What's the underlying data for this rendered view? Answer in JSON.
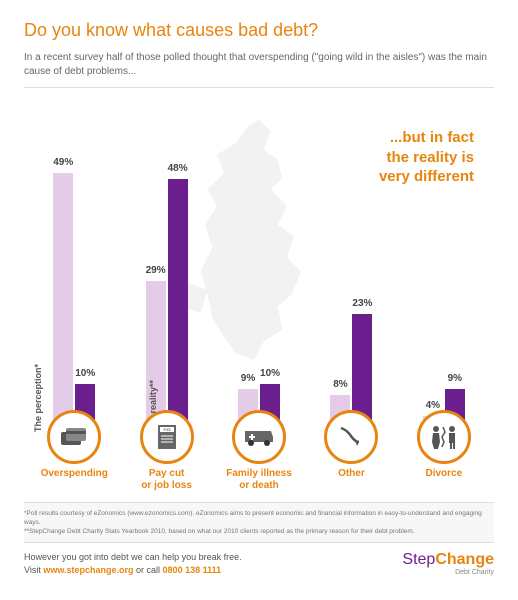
{
  "colors": {
    "orange": "#e8850f",
    "purple": "#6b1f8e",
    "lightPurple": "#e4cce9",
    "text": "#444444",
    "subtitle": "#666666"
  },
  "title": "Do you know what causes bad debt?",
  "subtitle": "In a recent survey half of those polled thought that overspending (\"going wild in the aisles\") was the main cause of debt problems...",
  "callout": "...but in fact\nthe reality is\nvery different",
  "chart": {
    "type": "bar",
    "max": 50,
    "barHeightPx": 270,
    "series": [
      {
        "key": "perception",
        "label": "The perception*",
        "color": "#e4cce9"
      },
      {
        "key": "reality",
        "label": "The reality**",
        "color": "#6b1f8e"
      }
    ],
    "categories": [
      {
        "name": "Overspending",
        "perception": 49,
        "reality": 10,
        "showPerceptionLabel": true
      },
      {
        "name": "Pay cut\nor job loss",
        "perception": 29,
        "reality": 48,
        "showRealityLabel": true
      },
      {
        "name": "Family illness\nor death",
        "perception": 9,
        "reality": 10
      },
      {
        "name": "Other",
        "perception": 8,
        "reality": 23
      },
      {
        "name": "Divorce",
        "perception": 4,
        "reality": 9
      }
    ]
  },
  "icons": [
    "credit-cards",
    "p45-document",
    "ambulance",
    "downward-arrow",
    "divorce-couple"
  ],
  "footnotes": [
    "*Poll results courtesy of eZonomics (www.ezonomics.com). eZonomics aims to present economic and financial information in easy-to-understand and engaging ways.",
    "**StepChange Debt Charity Stats Yearbook 2010, based on what our 2010 clients reported as the primary reason for their debt problem."
  ],
  "footer": {
    "line1": "However you got into debt we can help you break free.",
    "line2_prefix": "Visit ",
    "link": "www.stepchange.org",
    "line2_mid": " or call ",
    "phone": "0800 138 1111"
  },
  "logo": {
    "step": "Step",
    "change": "Change",
    "sub": "Debt Charity"
  }
}
